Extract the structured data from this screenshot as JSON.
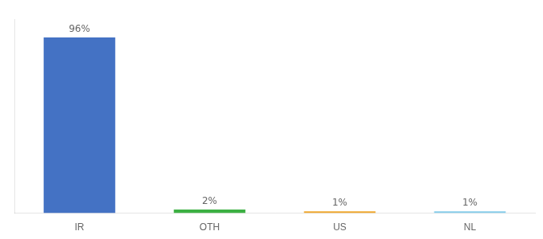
{
  "chart_data": {
    "type": "bar",
    "categories": [
      "IR",
      "OTH",
      "US",
      "NL"
    ],
    "values": [
      96,
      2,
      1,
      1
    ],
    "value_labels": [
      "96%",
      "2%",
      "1%",
      "1%"
    ],
    "colors": [
      "#4472c4",
      "#3cb043",
      "#f0a830",
      "#87ceeb"
    ],
    "ylim": [
      0,
      106
    ],
    "grid": false,
    "data_labels": true,
    "tick_labels": "x"
  }
}
